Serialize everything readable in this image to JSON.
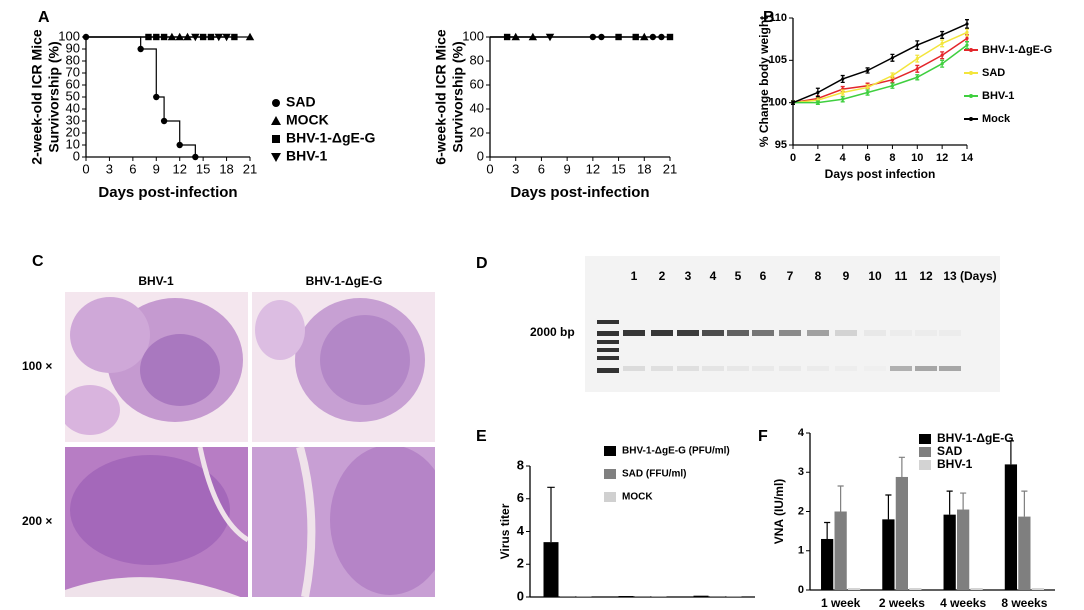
{
  "chart_data": [
    {
      "type": "step",
      "panel": "A",
      "ylabel": [
        "2-week-old ICR Mice",
        "Survivorship (%)"
      ],
      "xlabel": "Days post-infection",
      "xlim": [
        0,
        21
      ],
      "xticks": [
        0,
        3,
        6,
        9,
        12,
        15,
        18,
        21
      ],
      "ylim": [
        0,
        100
      ],
      "yticks": [
        0,
        10,
        20,
        30,
        40,
        50,
        60,
        70,
        80,
        90,
        100
      ],
      "series": [
        {
          "name": "SAD",
          "marker": "circle",
          "color": "#000000",
          "x": [
            0,
            7,
            9,
            10,
            12,
            14
          ],
          "values": [
            100,
            90,
            50,
            30,
            10,
            0
          ]
        },
        {
          "name": "MOCK",
          "marker": "triangle",
          "color": "#000000",
          "x": [
            11,
            12,
            13,
            21
          ],
          "values": [
            100,
            100,
            100,
            100
          ]
        },
        {
          "name": "BHV-1-ΔgE-G",
          "marker": "square",
          "color": "#000000",
          "x": [
            8,
            9,
            10,
            15,
            16,
            19
          ],
          "values": [
            100,
            100,
            100,
            100,
            100,
            100
          ]
        },
        {
          "name": "BHV-1",
          "marker": "triangle-down",
          "color": "#000000",
          "x": [
            14,
            17,
            18
          ],
          "values": [
            100,
            100,
            100
          ]
        }
      ]
    },
    {
      "type": "step",
      "ylabel": [
        "6-week-old ICR Mice",
        "Survivorship (%)"
      ],
      "xlabel": "Days post-infection",
      "xlim": [
        0,
        21
      ],
      "xticks": [
        0,
        3,
        6,
        9,
        12,
        15,
        18,
        21
      ],
      "ylim": [
        0,
        100
      ],
      "yticks": [
        0,
        20,
        40,
        60,
        80,
        100
      ],
      "series": [
        {
          "marker": "square",
          "color": "#000000",
          "x": [
            2,
            15,
            17,
            21
          ],
          "values": [
            100,
            100,
            100,
            100
          ]
        },
        {
          "marker": "triangle",
          "color": "#000000",
          "x": [
            3,
            5,
            18
          ],
          "values": [
            100,
            100,
            100
          ]
        },
        {
          "marker": "triangle-down",
          "color": "#000000",
          "x": [
            7
          ],
          "values": [
            100
          ]
        },
        {
          "marker": "circle",
          "color": "#000000",
          "x": [
            12,
            13,
            19,
            20
          ],
          "values": [
            100,
            100,
            100,
            100
          ]
        }
      ]
    },
    {
      "type": "line",
      "panel": "B",
      "ylabel": [
        "% Change body weight"
      ],
      "xlabel": "Days post infection",
      "xlim": [
        0,
        14
      ],
      "xticks": [
        0,
        2,
        4,
        6,
        8,
        10,
        12,
        14
      ],
      "ylim": [
        95,
        110
      ],
      "yticks": [
        95,
        100,
        105,
        110
      ],
      "series": [
        {
          "name": "BHV-1-ΔgE-G",
          "color": "#e3262b",
          "x": [
            0,
            2,
            4,
            6,
            8,
            10,
            12,
            14
          ],
          "values": [
            100,
            100.5,
            101.6,
            102,
            102.7,
            104,
            105.6,
            107.6
          ],
          "errors": [
            0.2,
            0.3,
            0.3,
            0.3,
            0.3,
            0.4,
            0.4,
            0.4
          ]
        },
        {
          "name": "SAD",
          "color": "#f3e53c",
          "x": [
            0,
            2,
            4,
            6,
            8,
            10,
            12,
            14
          ],
          "values": [
            100,
            100.3,
            101.2,
            101.8,
            103.2,
            105.2,
            107,
            108.3
          ],
          "errors": [
            0.2,
            0.3,
            0.3,
            0.3,
            0.3,
            0.4,
            0.4,
            0.4
          ]
        },
        {
          "name": "BHV-1",
          "color": "#3fcf3f",
          "x": [
            0,
            2,
            4,
            6,
            8,
            10,
            12,
            14
          ],
          "values": [
            100,
            100,
            100.4,
            101.2,
            102,
            103,
            104.6,
            106.8
          ],
          "errors": [
            0.2,
            0.2,
            0.3,
            0.3,
            0.3,
            0.3,
            0.4,
            0.4
          ]
        },
        {
          "name": "Mock",
          "color": "#000000",
          "x": [
            0,
            2,
            4,
            6,
            8,
            10,
            12,
            14
          ],
          "values": [
            100,
            101.2,
            102.8,
            103.8,
            105.3,
            106.8,
            108,
            109.3
          ],
          "errors": [
            0.2,
            0.5,
            0.4,
            0.3,
            0.4,
            0.5,
            0.4,
            0.5
          ]
        }
      ]
    },
    {
      "type": "bar",
      "panel": "E",
      "ylabel": [
        "Virus titer"
      ],
      "categories": [
        null,
        null,
        null
      ],
      "ylim": [
        0,
        8
      ],
      "yticks": [
        0,
        2,
        4,
        6,
        8
      ],
      "series": [
        {
          "name": "BHV-1-ΔgE-G (PFU/ml)",
          "color": "#000000",
          "values": [
            3.35,
            0.06,
            0.08
          ],
          "errors": [
            3.35,
            null,
            null
          ]
        },
        {
          "name": "SAD (FFU/ml)",
          "color": "#808080",
          "values": [
            0.05,
            0.05,
            0.05
          ]
        },
        {
          "name": "MOCK",
          "color": "#d0d0d0",
          "values": [
            0.02,
            0.02,
            0.02
          ]
        }
      ]
    },
    {
      "type": "bar",
      "panel": "F",
      "ylabel": [
        "VNA (IU/ml)"
      ],
      "categories": [
        "1 week",
        "2 weeks",
        "4 weeks",
        "8 weeks"
      ],
      "ylim": [
        0,
        4
      ],
      "yticks": [
        0,
        1,
        2,
        3,
        4
      ],
      "series": [
        {
          "name": "BHV-1-ΔgE-G",
          "color": "#000000",
          "values": [
            1.3,
            1.8,
            1.92,
            3.2
          ],
          "errors": [
            0.42,
            0.62,
            0.6,
            0.6
          ]
        },
        {
          "name": "SAD",
          "color": "#7f7f7f",
          "values": [
            2.0,
            2.88,
            2.05,
            1.87
          ],
          "errors": [
            0.65,
            0.5,
            0.42,
            0.65
          ]
        },
        {
          "name": "BHV-1",
          "color": "#d3d3d3",
          "values": [
            0.05,
            0.05,
            0.05,
            0.05
          ]
        }
      ]
    }
  ],
  "histology": {
    "panel": "C",
    "columns": [
      "BHV-1",
      "BHV-1-ΔgE-G"
    ],
    "rows": [
      "100 ×",
      "200 ×"
    ]
  },
  "gel": {
    "panel": "D",
    "lanes": [
      "1",
      "2",
      "3",
      "4",
      "5",
      "6",
      "7",
      "8",
      "9",
      "10",
      "11",
      "12",
      "13"
    ],
    "unit": "(Days)",
    "marker": "2000 bp"
  }
}
